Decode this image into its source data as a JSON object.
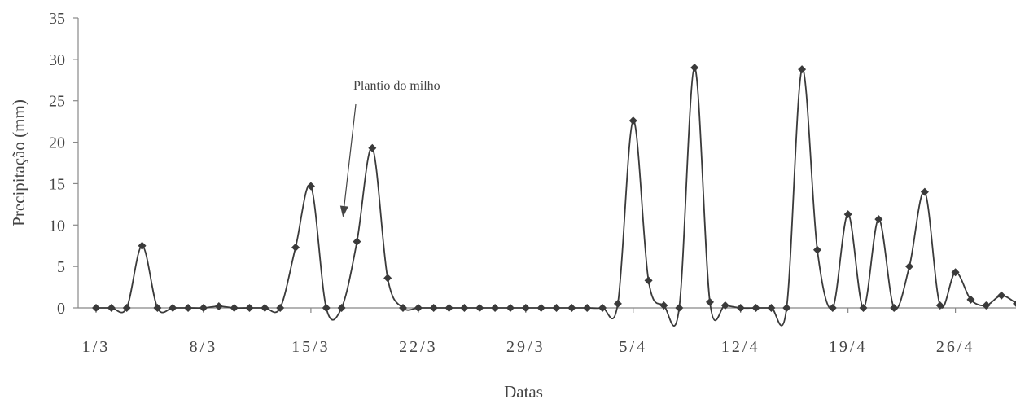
{
  "chart_data": {
    "type": "line",
    "title": "",
    "xlabel": "Datas",
    "ylabel": "Precipitação (mm)",
    "ylim": [
      0,
      35
    ],
    "yticks": [
      0,
      5,
      10,
      15,
      20,
      25,
      30,
      35
    ],
    "xlim": [
      "1/3",
      "30/4"
    ],
    "xtick_labels": [
      "1/3",
      "8/3",
      "15/3",
      "22/3",
      "29/3",
      "5/4",
      "12/4",
      "19/4",
      "26/4"
    ],
    "grid": false,
    "line_color": "#3a3a3a",
    "marker": "diamond",
    "annotation": {
      "text": "Plantio do milho",
      "points_to": "17/3"
    },
    "series": [
      {
        "x": [
          "1/3",
          "2/3",
          "3/3",
          "4/3",
          "5/3",
          "6/3",
          "7/3",
          "8/3",
          "9/3",
          "10/3",
          "11/3",
          "12/3",
          "13/3",
          "14/3",
          "15/3",
          "16/3",
          "17/3",
          "18/3",
          "19/3",
          "20/3",
          "21/3",
          "22/3",
          "23/3",
          "24/3",
          "25/3",
          "26/3",
          "27/3",
          "28/3",
          "29/3",
          "30/3",
          "31/3",
          "1/4",
          "2/4",
          "3/4",
          "4/4",
          "5/4",
          "6/4",
          "7/4",
          "8/4",
          "9/4",
          "10/4",
          "11/4",
          "12/4",
          "13/4",
          "14/4",
          "15/4",
          "16/4",
          "17/4",
          "18/4",
          "19/4",
          "20/4",
          "21/4",
          "22/4",
          "23/4",
          "24/4",
          "25/4",
          "26/4",
          "27/4",
          "28/4",
          "29/4",
          "30/4"
        ],
        "values": [
          0,
          0,
          0,
          7.5,
          0,
          0,
          0,
          0,
          0.2,
          0,
          0,
          0,
          0,
          7.3,
          14.7,
          0,
          0,
          8,
          19.3,
          3.6,
          0,
          0,
          0,
          0,
          0,
          0,
          0,
          0,
          0,
          0,
          0,
          0,
          0,
          0,
          0.5,
          22.6,
          3.3,
          0.3,
          0,
          29,
          0.7,
          0.3,
          0,
          0,
          0,
          0,
          28.8,
          7,
          0,
          11.3,
          0,
          10.7,
          0,
          5,
          14,
          0.3,
          4.3,
          1,
          0.3,
          1.5,
          0.5
        ]
      }
    ]
  }
}
